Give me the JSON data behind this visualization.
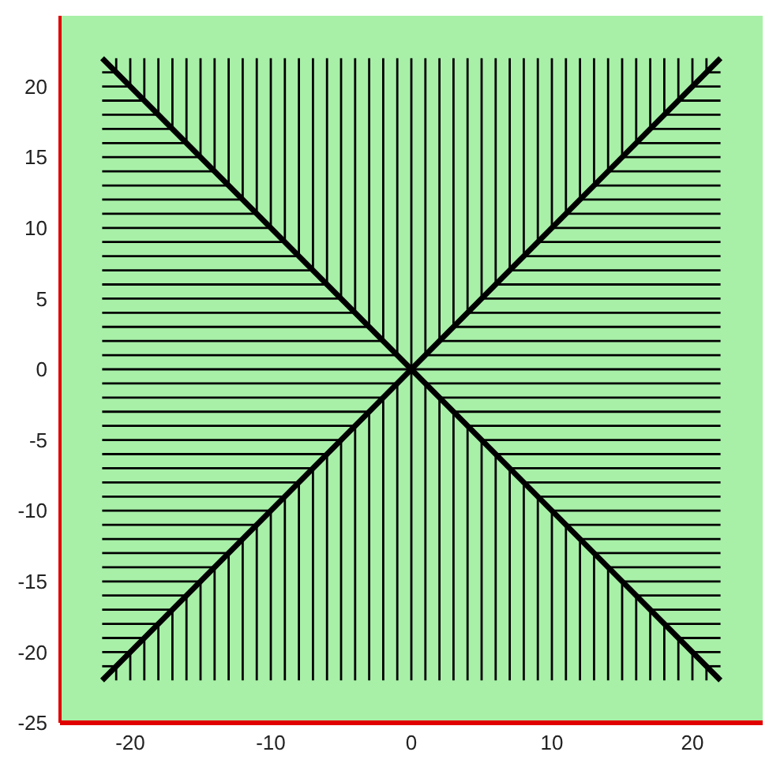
{
  "chart_data": {
    "type": "line",
    "xlim": [
      -25,
      25
    ],
    "ylim": [
      -25,
      25
    ],
    "xticks": [
      -20,
      -10,
      0,
      10,
      20
    ],
    "yticks": [
      -25,
      -20,
      -15,
      -10,
      -5,
      0,
      5,
      10,
      15,
      20
    ],
    "marker": "none",
    "line_style": "solid",
    "series": [
      {
        "color": "#000000",
        "x": [
          -22,
          22
        ],
        "values": [
          -22,
          22
        ]
      },
      {
        "color": "#000000",
        "x": [
          -22,
          22
        ],
        "values": [
          22,
          -22
        ]
      },
      {
        "color": "#000000",
        "x": [
          -21,
          -21
        ],
        "values": [
          21,
          22
        ]
      },
      {
        "color": "#000000",
        "x": [
          -21,
          -21
        ],
        "values": [
          -21,
          -22
        ]
      },
      {
        "color": "#000000",
        "x": [
          -20,
          -20
        ],
        "values": [
          20,
          22
        ]
      },
      {
        "color": "#000000",
        "x": [
          -20,
          -20
        ],
        "values": [
          -20,
          -22
        ]
      },
      {
        "color": "#000000",
        "x": [
          -19,
          -19
        ],
        "values": [
          19,
          22
        ]
      },
      {
        "color": "#000000",
        "x": [
          -19,
          -19
        ],
        "values": [
          -19,
          -22
        ]
      },
      {
        "color": "#000000",
        "x": [
          -18,
          -18
        ],
        "values": [
          18,
          22
        ]
      },
      {
        "color": "#000000",
        "x": [
          -18,
          -18
        ],
        "values": [
          -18,
          -22
        ]
      },
      {
        "color": "#000000",
        "x": [
          -17,
          -17
        ],
        "values": [
          17,
          22
        ]
      },
      {
        "color": "#000000",
        "x": [
          -17,
          -17
        ],
        "values": [
          -17,
          -22
        ]
      },
      {
        "color": "#000000",
        "x": [
          -16,
          -16
        ],
        "values": [
          16,
          22
        ]
      },
      {
        "color": "#000000",
        "x": [
          -16,
          -16
        ],
        "values": [
          -16,
          -22
        ]
      },
      {
        "color": "#000000",
        "x": [
          -15,
          -15
        ],
        "values": [
          15,
          22
        ]
      },
      {
        "color": "#000000",
        "x": [
          -15,
          -15
        ],
        "values": [
          -15,
          -22
        ]
      },
      {
        "color": "#000000",
        "x": [
          -14,
          -14
        ],
        "values": [
          14,
          22
        ]
      },
      {
        "color": "#000000",
        "x": [
          -14,
          -14
        ],
        "values": [
          -14,
          -22
        ]
      },
      {
        "color": "#000000",
        "x": [
          -13,
          -13
        ],
        "values": [
          13,
          22
        ]
      },
      {
        "color": "#000000",
        "x": [
          -13,
          -13
        ],
        "values": [
          -13,
          -22
        ]
      },
      {
        "color": "#000000",
        "x": [
          -12,
          -12
        ],
        "values": [
          12,
          22
        ]
      },
      {
        "color": "#000000",
        "x": [
          -12,
          -12
        ],
        "values": [
          -12,
          -22
        ]
      },
      {
        "color": "#000000",
        "x": [
          -11,
          -11
        ],
        "values": [
          11,
          22
        ]
      },
      {
        "color": "#000000",
        "x": [
          -11,
          -11
        ],
        "values": [
          -11,
          -22
        ]
      },
      {
        "color": "#000000",
        "x": [
          -10,
          -10
        ],
        "values": [
          10,
          22
        ]
      },
      {
        "color": "#000000",
        "x": [
          -10,
          -10
        ],
        "values": [
          -10,
          -22
        ]
      },
      {
        "color": "#000000",
        "x": [
          -9,
          -9
        ],
        "values": [
          9,
          22
        ]
      },
      {
        "color": "#000000",
        "x": [
          -9,
          -9
        ],
        "values": [
          -9,
          -22
        ]
      },
      {
        "color": "#000000",
        "x": [
          -8,
          -8
        ],
        "values": [
          8,
          22
        ]
      },
      {
        "color": "#000000",
        "x": [
          -8,
          -8
        ],
        "values": [
          -8,
          -22
        ]
      },
      {
        "color": "#000000",
        "x": [
          -7,
          -7
        ],
        "values": [
          7,
          22
        ]
      },
      {
        "color": "#000000",
        "x": [
          -7,
          -7
        ],
        "values": [
          -7,
          -22
        ]
      },
      {
        "color": "#000000",
        "x": [
          -6,
          -6
        ],
        "values": [
          6,
          22
        ]
      },
      {
        "color": "#000000",
        "x": [
          -6,
          -6
        ],
        "values": [
          -6,
          -22
        ]
      },
      {
        "color": "#000000",
        "x": [
          -5,
          -5
        ],
        "values": [
          5,
          22
        ]
      },
      {
        "color": "#000000",
        "x": [
          -5,
          -5
        ],
        "values": [
          -5,
          -22
        ]
      },
      {
        "color": "#000000",
        "x": [
          -4,
          -4
        ],
        "values": [
          4,
          22
        ]
      },
      {
        "color": "#000000",
        "x": [
          -4,
          -4
        ],
        "values": [
          -4,
          -22
        ]
      },
      {
        "color": "#000000",
        "x": [
          -3,
          -3
        ],
        "values": [
          3,
          22
        ]
      },
      {
        "color": "#000000",
        "x": [
          -3,
          -3
        ],
        "values": [
          -3,
          -22
        ]
      },
      {
        "color": "#000000",
        "x": [
          -2,
          -2
        ],
        "values": [
          2,
          22
        ]
      },
      {
        "color": "#000000",
        "x": [
          -2,
          -2
        ],
        "values": [
          -2,
          -22
        ]
      },
      {
        "color": "#000000",
        "x": [
          -1,
          -1
        ],
        "values": [
          1,
          22
        ]
      },
      {
        "color": "#000000",
        "x": [
          -1,
          -1
        ],
        "values": [
          -1,
          -22
        ]
      },
      {
        "color": "#000000",
        "x": [
          0,
          0
        ],
        "values": [
          -22,
          22
        ]
      },
      {
        "color": "#000000",
        "x": [
          1,
          1
        ],
        "values": [
          1,
          22
        ]
      },
      {
        "color": "#000000",
        "x": [
          1,
          1
        ],
        "values": [
          -1,
          -22
        ]
      },
      {
        "color": "#000000",
        "x": [
          2,
          2
        ],
        "values": [
          2,
          22
        ]
      },
      {
        "color": "#000000",
        "x": [
          2,
          2
        ],
        "values": [
          -2,
          -22
        ]
      },
      {
        "color": "#000000",
        "x": [
          3,
          3
        ],
        "values": [
          3,
          22
        ]
      },
      {
        "color": "#000000",
        "x": [
          3,
          3
        ],
        "values": [
          -3,
          -22
        ]
      },
      {
        "color": "#000000",
        "x": [
          4,
          4
        ],
        "values": [
          4,
          22
        ]
      },
      {
        "color": "#000000",
        "x": [
          4,
          4
        ],
        "values": [
          -4,
          -22
        ]
      },
      {
        "color": "#000000",
        "x": [
          5,
          5
        ],
        "values": [
          5,
          22
        ]
      },
      {
        "color": "#000000",
        "x": [
          5,
          5
        ],
        "values": [
          -5,
          -22
        ]
      },
      {
        "color": "#000000",
        "x": [
          6,
          6
        ],
        "values": [
          6,
          22
        ]
      },
      {
        "color": "#000000",
        "x": [
          6,
          6
        ],
        "values": [
          -6,
          -22
        ]
      },
      {
        "color": "#000000",
        "x": [
          7,
          7
        ],
        "values": [
          7,
          22
        ]
      },
      {
        "color": "#000000",
        "x": [
          7,
          7
        ],
        "values": [
          -7,
          -22
        ]
      },
      {
        "color": "#000000",
        "x": [
          8,
          8
        ],
        "values": [
          8,
          22
        ]
      },
      {
        "color": "#000000",
        "x": [
          8,
          8
        ],
        "values": [
          -8,
          -22
        ]
      },
      {
        "color": "#000000",
        "x": [
          9,
          9
        ],
        "values": [
          9,
          22
        ]
      },
      {
        "color": "#000000",
        "x": [
          9,
          9
        ],
        "values": [
          -9,
          -22
        ]
      },
      {
        "color": "#000000",
        "x": [
          10,
          10
        ],
        "values": [
          10,
          22
        ]
      },
      {
        "color": "#000000",
        "x": [
          10,
          10
        ],
        "values": [
          -10,
          -22
        ]
      },
      {
        "color": "#000000",
        "x": [
          11,
          11
        ],
        "values": [
          11,
          22
        ]
      },
      {
        "color": "#000000",
        "x": [
          11,
          11
        ],
        "values": [
          -11,
          -22
        ]
      },
      {
        "color": "#000000",
        "x": [
          12,
          12
        ],
        "values": [
          12,
          22
        ]
      },
      {
        "color": "#000000",
        "x": [
          12,
          12
        ],
        "values": [
          -12,
          -22
        ]
      },
      {
        "color": "#000000",
        "x": [
          13,
          13
        ],
        "values": [
          13,
          22
        ]
      },
      {
        "color": "#000000",
        "x": [
          13,
          13
        ],
        "values": [
          -13,
          -22
        ]
      },
      {
        "color": "#000000",
        "x": [
          14,
          14
        ],
        "values": [
          14,
          22
        ]
      },
      {
        "color": "#000000",
        "x": [
          14,
          14
        ],
        "values": [
          -14,
          -22
        ]
      },
      {
        "color": "#000000",
        "x": [
          15,
          15
        ],
        "values": [
          15,
          22
        ]
      },
      {
        "color": "#000000",
        "x": [
          15,
          15
        ],
        "values": [
          -15,
          -22
        ]
      },
      {
        "color": "#000000",
        "x": [
          16,
          16
        ],
        "values": [
          16,
          22
        ]
      },
      {
        "color": "#000000",
        "x": [
          16,
          16
        ],
        "values": [
          -16,
          -22
        ]
      },
      {
        "color": "#000000",
        "x": [
          17,
          17
        ],
        "values": [
          17,
          22
        ]
      },
      {
        "color": "#000000",
        "x": [
          17,
          17
        ],
        "values": [
          -17,
          -22
        ]
      },
      {
        "color": "#000000",
        "x": [
          18,
          18
        ],
        "values": [
          18,
          22
        ]
      },
      {
        "color": "#000000",
        "x": [
          18,
          18
        ],
        "values": [
          -18,
          -22
        ]
      },
      {
        "color": "#000000",
        "x": [
          19,
          19
        ],
        "values": [
          19,
          22
        ]
      },
      {
        "color": "#000000",
        "x": [
          19,
          19
        ],
        "values": [
          -19,
          -22
        ]
      },
      {
        "color": "#000000",
        "x": [
          20,
          20
        ],
        "values": [
          20,
          22
        ]
      },
      {
        "color": "#000000",
        "x": [
          20,
          20
        ],
        "values": [
          -20,
          -22
        ]
      },
      {
        "color": "#000000",
        "x": [
          21,
          21
        ],
        "values": [
          21,
          22
        ]
      },
      {
        "color": "#000000",
        "x": [
          21,
          21
        ],
        "values": [
          -21,
          -22
        ]
      },
      {
        "color": "#000000",
        "x": [
          21,
          22
        ],
        "values": [
          -21,
          -21
        ]
      },
      {
        "color": "#000000",
        "x": [
          -21,
          -22
        ],
        "values": [
          -21,
          -21
        ]
      },
      {
        "color": "#000000",
        "x": [
          20,
          22
        ],
        "values": [
          -20,
          -20
        ]
      },
      {
        "color": "#000000",
        "x": [
          -20,
          -22
        ],
        "values": [
          -20,
          -20
        ]
      },
      {
        "color": "#000000",
        "x": [
          19,
          22
        ],
        "values": [
          -19,
          -19
        ]
      },
      {
        "color": "#000000",
        "x": [
          -19,
          -22
        ],
        "values": [
          -19,
          -19
        ]
      },
      {
        "color": "#000000",
        "x": [
          18,
          22
        ],
        "values": [
          -18,
          -18
        ]
      },
      {
        "color": "#000000",
        "x": [
          -18,
          -22
        ],
        "values": [
          -18,
          -18
        ]
      },
      {
        "color": "#000000",
        "x": [
          17,
          22
        ],
        "values": [
          -17,
          -17
        ]
      },
      {
        "color": "#000000",
        "x": [
          -17,
          -22
        ],
        "values": [
          -17,
          -17
        ]
      },
      {
        "color": "#000000",
        "x": [
          16,
          22
        ],
        "values": [
          -16,
          -16
        ]
      },
      {
        "color": "#000000",
        "x": [
          -16,
          -22
        ],
        "values": [
          -16,
          -16
        ]
      },
      {
        "color": "#000000",
        "x": [
          15,
          22
        ],
        "values": [
          -15,
          -15
        ]
      },
      {
        "color": "#000000",
        "x": [
          -15,
          -22
        ],
        "values": [
          -15,
          -15
        ]
      },
      {
        "color": "#000000",
        "x": [
          14,
          22
        ],
        "values": [
          -14,
          -14
        ]
      },
      {
        "color": "#000000",
        "x": [
          -14,
          -22
        ],
        "values": [
          -14,
          -14
        ]
      },
      {
        "color": "#000000",
        "x": [
          13,
          22
        ],
        "values": [
          -13,
          -13
        ]
      },
      {
        "color": "#000000",
        "x": [
          -13,
          -22
        ],
        "values": [
          -13,
          -13
        ]
      },
      {
        "color": "#000000",
        "x": [
          12,
          22
        ],
        "values": [
          -12,
          -12
        ]
      },
      {
        "color": "#000000",
        "x": [
          -12,
          -22
        ],
        "values": [
          -12,
          -12
        ]
      },
      {
        "color": "#000000",
        "x": [
          11,
          22
        ],
        "values": [
          -11,
          -11
        ]
      },
      {
        "color": "#000000",
        "x": [
          -11,
          -22
        ],
        "values": [
          -11,
          -11
        ]
      },
      {
        "color": "#000000",
        "x": [
          10,
          22
        ],
        "values": [
          -10,
          -10
        ]
      },
      {
        "color": "#000000",
        "x": [
          -10,
          -22
        ],
        "values": [
          -10,
          -10
        ]
      },
      {
        "color": "#000000",
        "x": [
          9,
          22
        ],
        "values": [
          -9,
          -9
        ]
      },
      {
        "color": "#000000",
        "x": [
          -9,
          -22
        ],
        "values": [
          -9,
          -9
        ]
      },
      {
        "color": "#000000",
        "x": [
          8,
          22
        ],
        "values": [
          -8,
          -8
        ]
      },
      {
        "color": "#000000",
        "x": [
          -8,
          -22
        ],
        "values": [
          -8,
          -8
        ]
      },
      {
        "color": "#000000",
        "x": [
          7,
          22
        ],
        "values": [
          -7,
          -7
        ]
      },
      {
        "color": "#000000",
        "x": [
          -7,
          -22
        ],
        "values": [
          -7,
          -7
        ]
      },
      {
        "color": "#000000",
        "x": [
          6,
          22
        ],
        "values": [
          -6,
          -6
        ]
      },
      {
        "color": "#000000",
        "x": [
          -6,
          -22
        ],
        "values": [
          -6,
          -6
        ]
      },
      {
        "color": "#000000",
        "x": [
          5,
          22
        ],
        "values": [
          -5,
          -5
        ]
      },
      {
        "color": "#000000",
        "x": [
          -5,
          -22
        ],
        "values": [
          -5,
          -5
        ]
      },
      {
        "color": "#000000",
        "x": [
          4,
          22
        ],
        "values": [
          -4,
          -4
        ]
      },
      {
        "color": "#000000",
        "x": [
          -4,
          -22
        ],
        "values": [
          -4,
          -4
        ]
      },
      {
        "color": "#000000",
        "x": [
          3,
          22
        ],
        "values": [
          -3,
          -3
        ]
      },
      {
        "color": "#000000",
        "x": [
          -3,
          -22
        ],
        "values": [
          -3,
          -3
        ]
      },
      {
        "color": "#000000",
        "x": [
          2,
          22
        ],
        "values": [
          -2,
          -2
        ]
      },
      {
        "color": "#000000",
        "x": [
          -2,
          -22
        ],
        "values": [
          -2,
          -2
        ]
      },
      {
        "color": "#000000",
        "x": [
          1,
          22
        ],
        "values": [
          -1,
          -1
        ]
      },
      {
        "color": "#000000",
        "x": [
          -1,
          -22
        ],
        "values": [
          -1,
          -1
        ]
      },
      {
        "color": "#000000",
        "x": [
          -22,
          22
        ],
        "values": [
          0,
          0
        ]
      },
      {
        "color": "#000000",
        "x": [
          1,
          22
        ],
        "values": [
          1,
          1
        ]
      },
      {
        "color": "#000000",
        "x": [
          -1,
          -22
        ],
        "values": [
          1,
          1
        ]
      },
      {
        "color": "#000000",
        "x": [
          2,
          22
        ],
        "values": [
          2,
          2
        ]
      },
      {
        "color": "#000000",
        "x": [
          -2,
          -22
        ],
        "values": [
          2,
          2
        ]
      },
      {
        "color": "#000000",
        "x": [
          3,
          22
        ],
        "values": [
          3,
          3
        ]
      },
      {
        "color": "#000000",
        "x": [
          -3,
          -22
        ],
        "values": [
          3,
          3
        ]
      },
      {
        "color": "#000000",
        "x": [
          4,
          22
        ],
        "values": [
          4,
          4
        ]
      },
      {
        "color": "#000000",
        "x": [
          -4,
          -22
        ],
        "values": [
          4,
          4
        ]
      },
      {
        "color": "#000000",
        "x": [
          5,
          22
        ],
        "values": [
          5,
          5
        ]
      },
      {
        "color": "#000000",
        "x": [
          -5,
          -22
        ],
        "values": [
          5,
          5
        ]
      },
      {
        "color": "#000000",
        "x": [
          6,
          22
        ],
        "values": [
          6,
          6
        ]
      },
      {
        "color": "#000000",
        "x": [
          -6,
          -22
        ],
        "values": [
          6,
          6
        ]
      },
      {
        "color": "#000000",
        "x": [
          7,
          22
        ],
        "values": [
          7,
          7
        ]
      },
      {
        "color": "#000000",
        "x": [
          -7,
          -22
        ],
        "values": [
          7,
          7
        ]
      },
      {
        "color": "#000000",
        "x": [
          8,
          22
        ],
        "values": [
          8,
          8
        ]
      },
      {
        "color": "#000000",
        "x": [
          -8,
          -22
        ],
        "values": [
          8,
          8
        ]
      },
      {
        "color": "#000000",
        "x": [
          9,
          22
        ],
        "values": [
          9,
          9
        ]
      },
      {
        "color": "#000000",
        "x": [
          -9,
          -22
        ],
        "values": [
          9,
          9
        ]
      },
      {
        "color": "#000000",
        "x": [
          10,
          22
        ],
        "values": [
          10,
          10
        ]
      },
      {
        "color": "#000000",
        "x": [
          -10,
          -22
        ],
        "values": [
          10,
          10
        ]
      },
      {
        "color": "#000000",
        "x": [
          11,
          22
        ],
        "values": [
          11,
          11
        ]
      },
      {
        "color": "#000000",
        "x": [
          -11,
          -22
        ],
        "values": [
          11,
          11
        ]
      },
      {
        "color": "#000000",
        "x": [
          12,
          22
        ],
        "values": [
          12,
          12
        ]
      },
      {
        "color": "#000000",
        "x": [
          -12,
          -22
        ],
        "values": [
          12,
          12
        ]
      },
      {
        "color": "#000000",
        "x": [
          13,
          22
        ],
        "values": [
          13,
          13
        ]
      },
      {
        "color": "#000000",
        "x": [
          -13,
          -22
        ],
        "values": [
          13,
          13
        ]
      },
      {
        "color": "#000000",
        "x": [
          14,
          22
        ],
        "values": [
          14,
          14
        ]
      },
      {
        "color": "#000000",
        "x": [
          -14,
          -22
        ],
        "values": [
          14,
          14
        ]
      },
      {
        "color": "#000000",
        "x": [
          15,
          22
        ],
        "values": [
          15,
          15
        ]
      },
      {
        "color": "#000000",
        "x": [
          -15,
          -22
        ],
        "values": [
          15,
          15
        ]
      },
      {
        "color": "#000000",
        "x": [
          16,
          22
        ],
        "values": [
          16,
          16
        ]
      },
      {
        "color": "#000000",
        "x": [
          -16,
          -22
        ],
        "values": [
          16,
          16
        ]
      },
      {
        "color": "#000000",
        "x": [
          17,
          22
        ],
        "values": [
          17,
          17
        ]
      },
      {
        "color": "#000000",
        "x": [
          -17,
          -22
        ],
        "values": [
          17,
          17
        ]
      },
      {
        "color": "#000000",
        "x": [
          18,
          22
        ],
        "values": [
          18,
          18
        ]
      },
      {
        "color": "#000000",
        "x": [
          -18,
          -22
        ],
        "values": [
          18,
          18
        ]
      },
      {
        "color": "#000000",
        "x": [
          19,
          22
        ],
        "values": [
          19,
          19
        ]
      },
      {
        "color": "#000000",
        "x": [
          -19,
          -22
        ],
        "values": [
          19,
          19
        ]
      },
      {
        "color": "#000000",
        "x": [
          20,
          22
        ],
        "values": [
          20,
          20
        ]
      },
      {
        "color": "#000000",
        "x": [
          -20,
          -22
        ],
        "values": [
          20,
          20
        ]
      },
      {
        "color": "#000000",
        "x": [
          21,
          22
        ],
        "values": [
          21,
          21
        ]
      },
      {
        "color": "#000000",
        "x": [
          -21,
          -22
        ],
        "values": [
          21,
          21
        ]
      }
    ]
  }
}
